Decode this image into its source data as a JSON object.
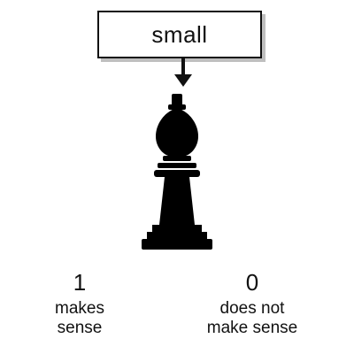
{
  "stimulus": {
    "word": "small"
  },
  "icons": {
    "pointer": "down-arrow-icon",
    "figure": "chess-bishop-icon"
  },
  "responses": [
    {
      "key": "1",
      "label_line1": "makes",
      "label_line2": "sense"
    },
    {
      "key": "0",
      "label_line1": "does not",
      "label_line2": "make sense"
    }
  ]
}
